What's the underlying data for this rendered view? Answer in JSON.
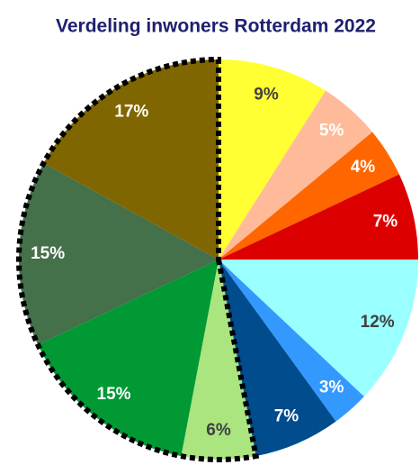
{
  "chart_data": {
    "type": "pie",
    "title": "Verdeling inwoners Rotterdam 2022",
    "values": [
      9,
      5,
      4,
      7,
      12,
      3,
      7,
      6,
      15,
      15,
      17
    ],
    "value_labels": [
      "9%",
      "5%",
      "4%",
      "7%",
      "12%",
      "3%",
      "7%",
      "6%",
      "15%",
      "15%",
      "17%"
    ],
    "colors": [
      "#ffff33",
      "#ffbb99",
      "#ff6600",
      "#dd0000",
      "#99ffff",
      "#3399ff",
      "#004c8c",
      "#aae57f",
      "#009933",
      "#44704a",
      "#7f6600"
    ],
    "label_colors": [
      "#404040",
      "#ffffff",
      "#ffffff",
      "#ffffff",
      "#404040",
      "#ffffff",
      "#ffffff",
      "#404040",
      "#ffffff",
      "#ffffff",
      "#ffffff"
    ]
  }
}
